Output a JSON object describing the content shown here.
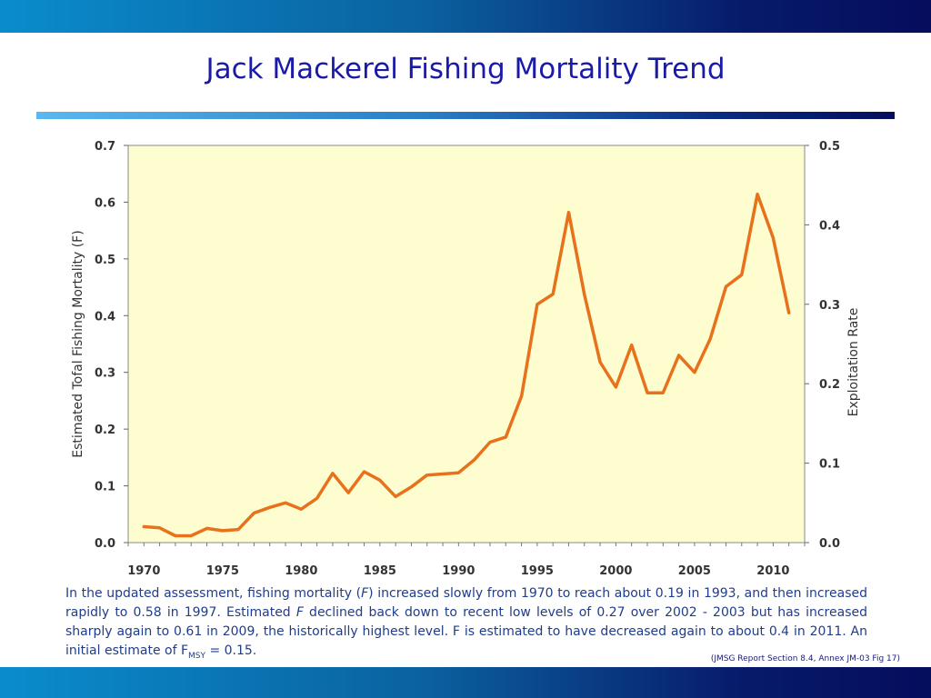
{
  "slide": {
    "title": "Jack Mackerel Fishing Mortality Trend",
    "caption": {
      "part1": "In the updated assessment, fishing mortality (",
      "f_symbol": "F",
      "part2": ") increased slowly from 1970 to reach about 0.19 in 1993, and then increased rapidly to 0.58 in 1997. Estimated ",
      "f_symbol2": "F",
      "part3": " declined back down to recent low levels of 0.27 over 2002 - 2003 but has increased sharply again to 0.61 in 2009, the historically highest level.  F is estimated to have decreased again to about 0.4 in 2011.  An initial estimate of F",
      "msy_subscript": "MSY",
      "part4": " = 0.15."
    },
    "source": "(JMSG Report Section 8.4, Annex JM-03  Fig 17)",
    "colors": {
      "accent": "#1a1aa8",
      "line": "#e8711c",
      "plot_bg": "#fdfdd0"
    }
  },
  "chart_data": {
    "type": "line",
    "ylabel": "Estimated Tofal Fishing Mortality (F)",
    "y2label": "Exploitation Rate",
    "ylim": [
      0,
      0.7
    ],
    "y2lim": [
      0,
      0.5
    ],
    "xlim": [
      1969,
      2012
    ],
    "yticks": [
      "0.0",
      "0.1",
      "0.2",
      "0.3",
      "0.4",
      "0.5",
      "0.6",
      "0.7"
    ],
    "y2ticks": [
      "0.0",
      "0.1",
      "0.2",
      "0.3",
      "0.4",
      "0.5"
    ],
    "xticks": [
      "1970",
      "1975",
      "1980",
      "1985",
      "1990",
      "1995",
      "2000",
      "2005",
      "2010"
    ],
    "grid": false,
    "series": [
      {
        "x": [
          1970,
          1971,
          1972,
          1973,
          1974,
          1975,
          1976,
          1977,
          1978,
          1979,
          1980,
          1981,
          1982,
          1983,
          1984,
          1985,
          1986,
          1987,
          1988,
          1989,
          1990,
          1991,
          1992,
          1993,
          1994,
          1995,
          1996,
          1997,
          1998,
          1999,
          2000,
          2001,
          2002,
          2003,
          2004,
          2005,
          2006,
          2007,
          2008,
          2009,
          2010,
          2011
        ],
        "values": [
          0.028,
          0.026,
          0.012,
          0.012,
          0.025,
          0.021,
          0.023,
          0.052,
          0.062,
          0.07,
          0.059,
          0.078,
          0.122,
          0.088,
          0.125,
          0.11,
          0.081,
          0.098,
          0.119,
          0.121,
          0.123,
          0.146,
          0.177,
          0.186,
          0.258,
          0.42,
          0.438,
          0.582,
          0.437,
          0.318,
          0.274,
          0.348,
          0.264,
          0.264,
          0.33,
          0.3,
          0.359,
          0.451,
          0.472,
          0.614,
          0.537,
          0.405
        ]
      }
    ]
  }
}
